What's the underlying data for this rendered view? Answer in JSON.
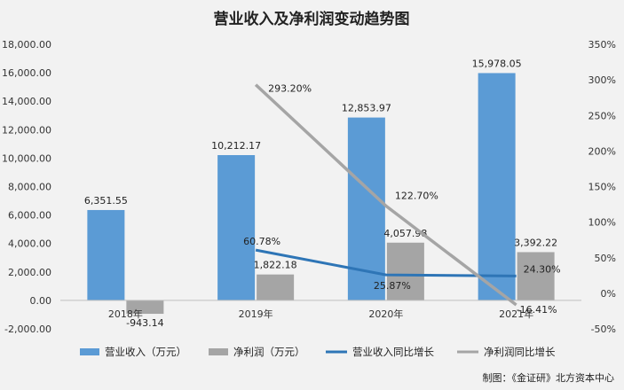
{
  "chart_data": {
    "type": "bar+line",
    "title": "营业收入及净利润变动趋势图",
    "categories": [
      "2018年",
      "2019年",
      "2020年",
      "2021年"
    ],
    "bar_series": [
      {
        "name": "营业收入（万元）",
        "color": "#5b9bd5",
        "values": [
          6351.55,
          10212.17,
          12853.97,
          15978.05
        ],
        "labels": [
          "6,351.55",
          "10,212.17",
          "12,853.97",
          "15,978.05"
        ]
      },
      {
        "name": "净利润（万元）",
        "color": "#a5a5a5",
        "values": [
          -943.14,
          1822.18,
          4057.98,
          3392.22
        ],
        "labels": [
          "-943.14",
          "1,822.18",
          "4,057.98",
          "3,392.22"
        ]
      }
    ],
    "line_series": [
      {
        "name": "营业收入同比增长",
        "color": "#2e75b6",
        "start_index": 1,
        "values": [
          60.78,
          25.87,
          24.3
        ],
        "labels": [
          "60.78%",
          "25.87%",
          "24.30%"
        ]
      },
      {
        "name": "净利润同比增长",
        "color": "#a5a5a5",
        "start_index": 1,
        "values": [
          293.2,
          122.7,
          -16.41
        ],
        "labels": [
          "293.20%",
          "122.70%",
          "-16.41%"
        ]
      }
    ],
    "y_left": {
      "min": -2000,
      "max": 18000,
      "step": 2000,
      "tick_labels": [
        "-2,000.00",
        "0.00",
        "2,000.00",
        "4,000.00",
        "6,000.00",
        "8,000.00",
        "10,000.00",
        "12,000.00",
        "14,000.00",
        "16,000.00",
        "18,000.00"
      ]
    },
    "y_right": {
      "min": -50,
      "max": 350,
      "step": 50,
      "tick_labels": [
        "-50%",
        "0%",
        "50%",
        "100%",
        "150%",
        "200%",
        "250%",
        "300%",
        "350%"
      ]
    },
    "grid": false,
    "legend_position": "bottom"
  },
  "source": "制图：《金证研》北方资本中心"
}
